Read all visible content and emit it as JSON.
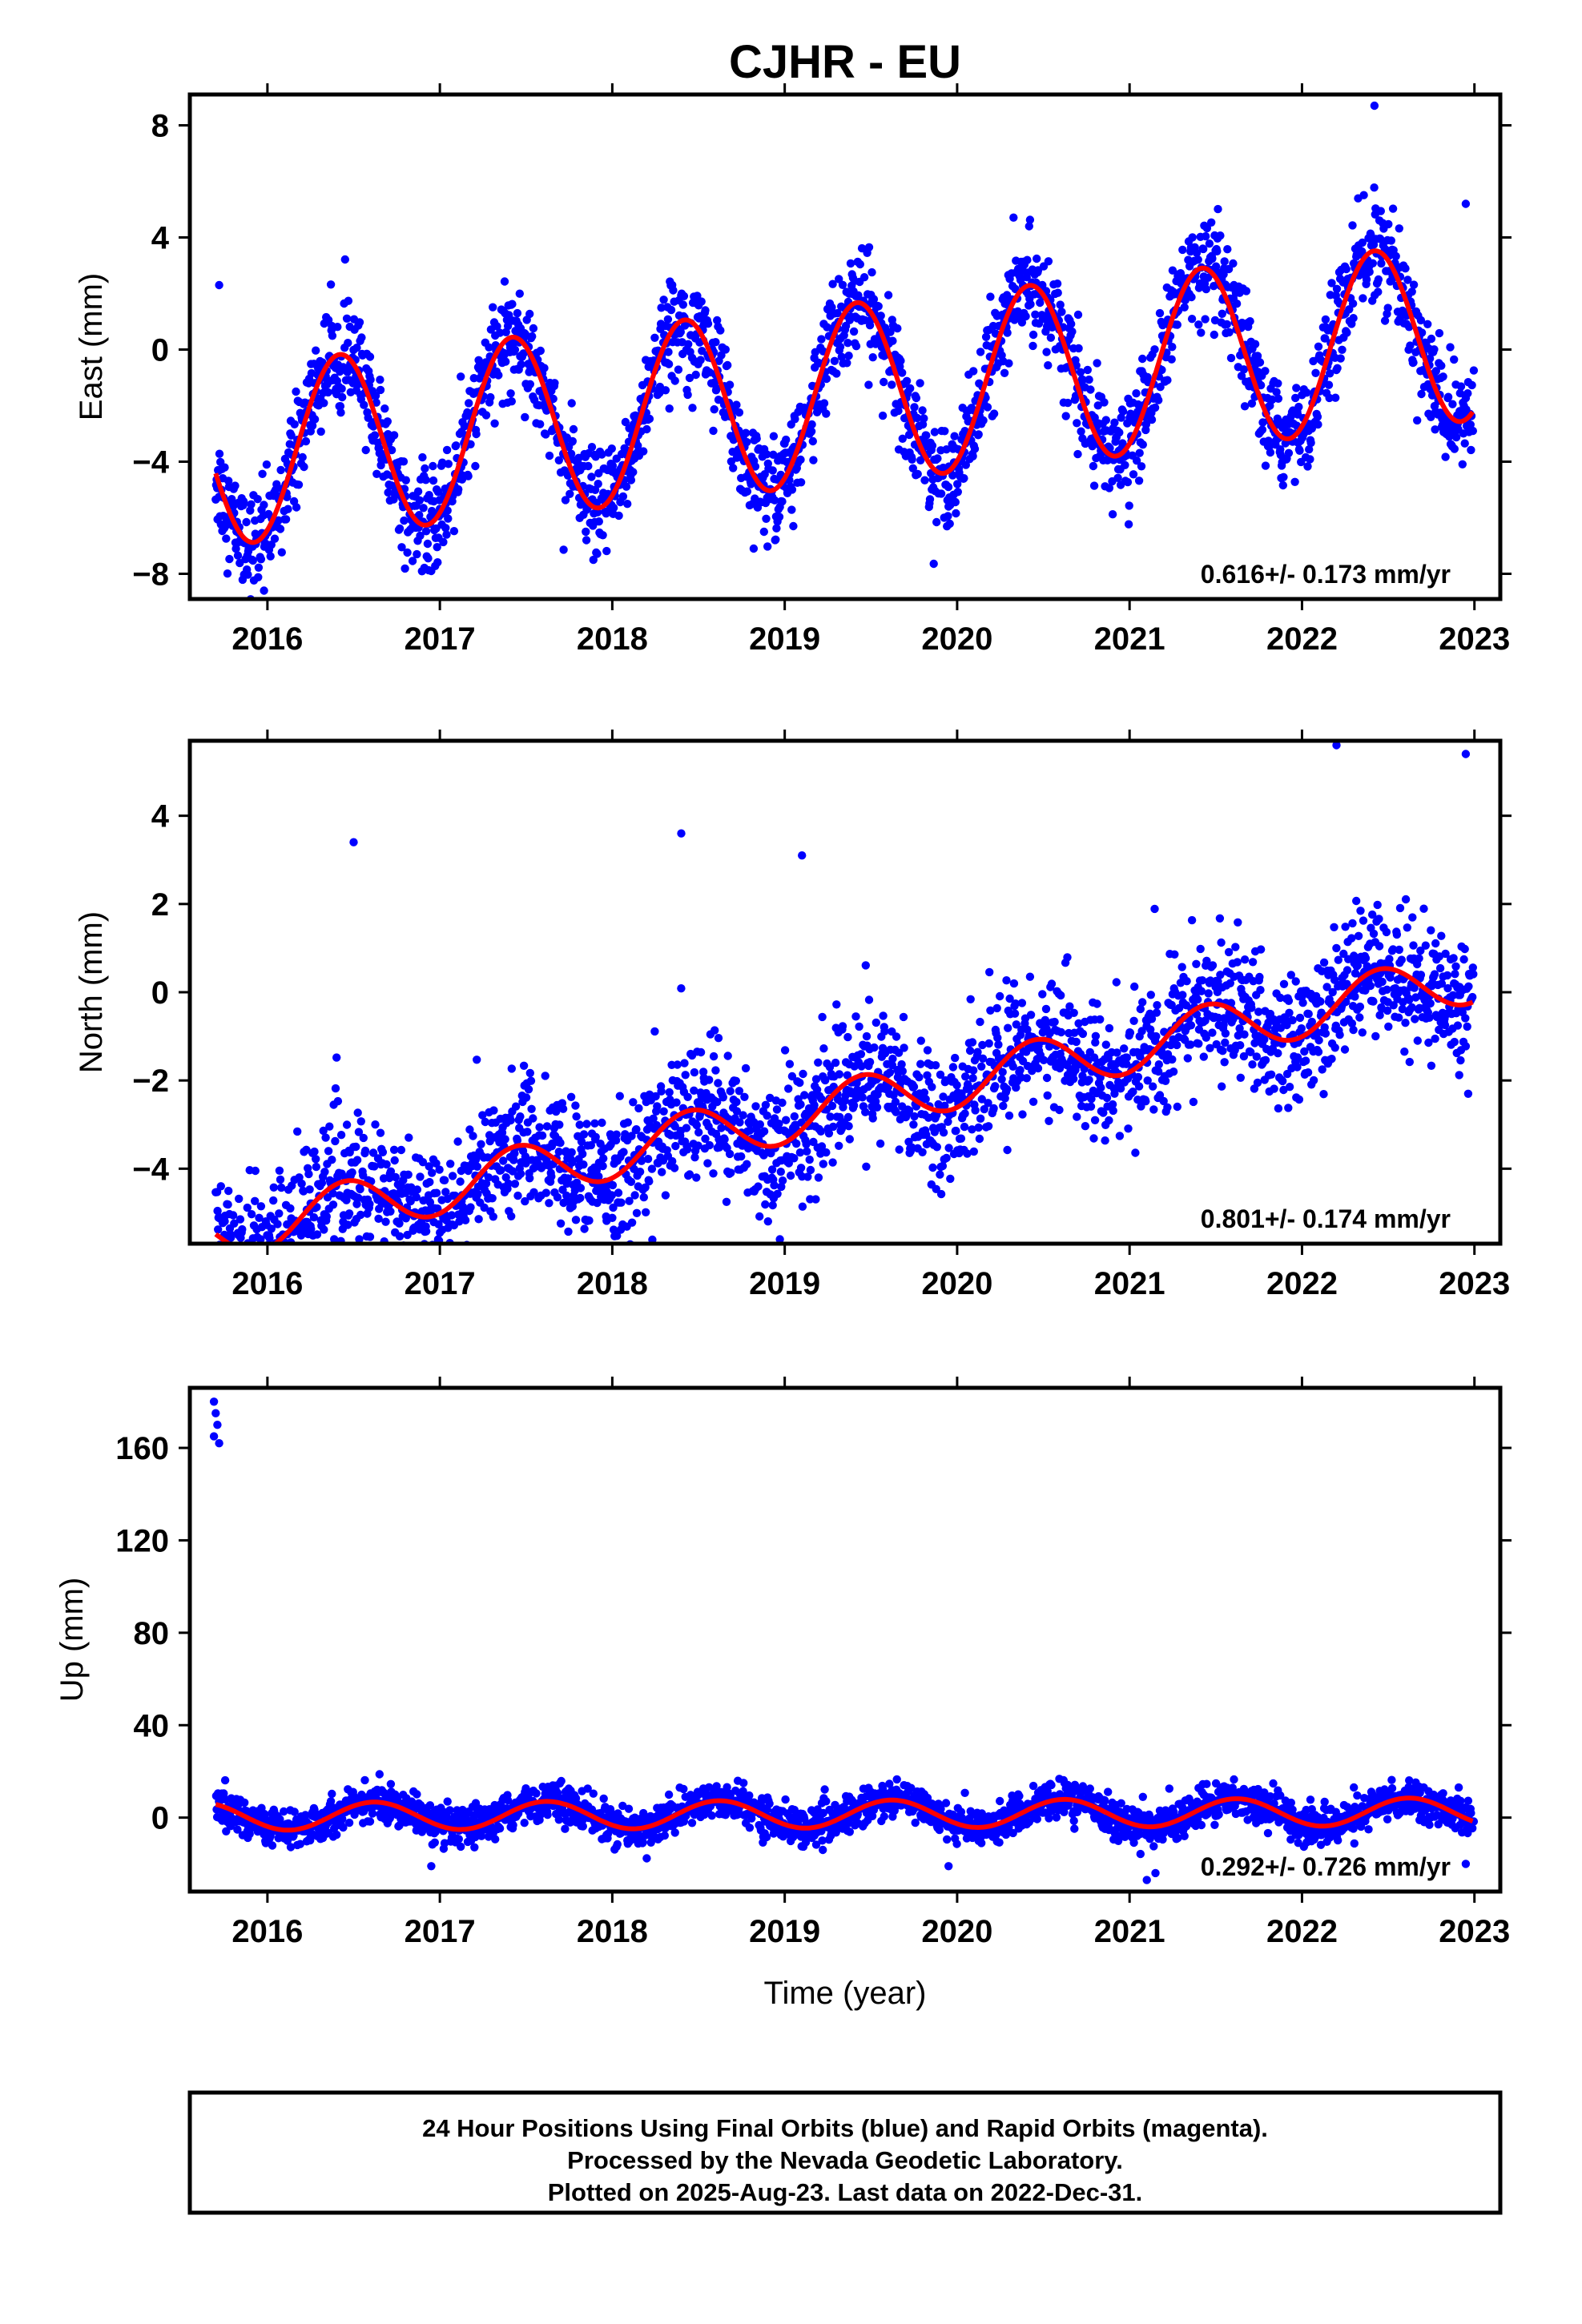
{
  "title": "CJHR - EU",
  "xlabel": "Time (year)",
  "footer": {
    "line1": "24 Hour Positions Using Final Orbits (blue) and Rapid Orbits (magenta).",
    "line2": "Processed by the Nevada Geodetic Laboratory.",
    "line3": "Plotted on 2025-Aug-23. Last data on 2022-Dec-31."
  },
  "colors": {
    "points": "#0000ff",
    "fit": "#ff0000",
    "frame": "#000000"
  },
  "chart_data": [
    {
      "type": "scatter",
      "ylabel": "East (mm)",
      "rate": "0.616+/- 0.173 mm/yr",
      "xlim": [
        2015.55,
        2023.15
      ],
      "ylim": [
        -8.9,
        9.1
      ],
      "x_ticks": [
        2016,
        2017,
        2018,
        2019,
        2020,
        2021,
        2022,
        2023
      ],
      "y_ticks": [
        -8,
        -4,
        0,
        4,
        8
      ],
      "y_tick_labels": [
        "−8",
        "−4",
        "0",
        "4",
        "8"
      ],
      "data_start": 2015.7,
      "data_end": 2022.997,
      "model": {
        "offset": -1.6,
        "trend": 0.616,
        "annual_amplitude": 3.2,
        "annual_peak": 2016.42,
        "scatter": 0.9
      },
      "series": [
        {
          "name": "24 Hour Positions Final Orbits",
          "values_note": "daily points"
        },
        {
          "name": "fit",
          "kind": "line"
        }
      ],
      "outliers": [
        [
          2015.72,
          2.3
        ],
        [
          2015.93,
          -6.9
        ],
        [
          2016.7,
          -5.1
        ],
        [
          2016.95,
          -7.9
        ],
        [
          2017.85,
          -6.8
        ],
        [
          2018.82,
          -7.1
        ],
        [
          2018.88,
          -6.5
        ],
        [
          2019.05,
          -6.3
        ],
        [
          2019.95,
          -5.6
        ],
        [
          2022.95,
          5.2
        ],
        [
          2022.42,
          8.7
        ],
        [
          2015.98,
          -8.6
        ]
      ]
    },
    {
      "type": "scatter",
      "ylabel": "North (mm)",
      "rate": "0.801+/- 0.174 mm/yr",
      "xlim": [
        2015.55,
        2023.15
      ],
      "ylim": [
        -5.7,
        5.7
      ],
      "x_ticks": [
        2016,
        2017,
        2018,
        2019,
        2020,
        2021,
        2022,
        2023
      ],
      "y_ticks": [
        -4,
        -2,
        0,
        2,
        4
      ],
      "y_tick_labels": [
        "−4",
        "−2",
        "0",
        "2",
        "4"
      ],
      "data_start": 2015.7,
      "data_end": 2022.997,
      "model": {
        "offset": -2.6,
        "trend": 0.801,
        "annual_amplitude": 0.6,
        "annual_peak": 2016.45,
        "scatter": 0.75
      },
      "series": [
        {
          "name": "24 Hour Positions Final Orbits",
          "values_note": "daily points"
        },
        {
          "name": "fit",
          "kind": "line"
        }
      ],
      "outliers": [
        [
          2015.75,
          -5.5
        ],
        [
          2016.25,
          -5.3
        ],
        [
          2016.5,
          3.4
        ],
        [
          2018.4,
          3.6
        ],
        [
          2020.8,
          -2.9
        ],
        [
          2022.2,
          5.6
        ],
        [
          2022.95,
          5.4
        ],
        [
          2019.1,
          3.1
        ]
      ]
    },
    {
      "type": "scatter",
      "ylabel": "Up (mm)",
      "rate": "0.292+/- 0.726 mm/yr",
      "xlim": [
        2015.55,
        2023.15
      ],
      "ylim": [
        -32,
        186
      ],
      "x_ticks": [
        2016,
        2017,
        2018,
        2019,
        2020,
        2021,
        2022,
        2023
      ],
      "y_ticks": [
        0,
        40,
        80,
        120,
        160
      ],
      "y_tick_labels": [
        "0",
        "40",
        "80",
        "120",
        "160"
      ],
      "data_start": 2015.7,
      "data_end": 2022.997,
      "model": {
        "offset": 1.5,
        "trend": 0.292,
        "annual_amplitude": 6.0,
        "annual_peak": 2016.62,
        "scatter": 4.0
      },
      "series": [
        {
          "name": "24 Hour Positions Final Orbits",
          "values_note": "daily points"
        },
        {
          "name": "fit",
          "kind": "line"
        }
      ],
      "outliers": [
        [
          2015.69,
          180
        ],
        [
          2015.7,
          175
        ],
        [
          2015.71,
          170
        ],
        [
          2015.69,
          165
        ],
        [
          2015.72,
          162
        ],
        [
          2016.95,
          -21
        ],
        [
          2021.1,
          -27
        ],
        [
          2021.15,
          -24
        ],
        [
          2019.95,
          -21
        ],
        [
          2022.95,
          -20
        ]
      ]
    }
  ]
}
